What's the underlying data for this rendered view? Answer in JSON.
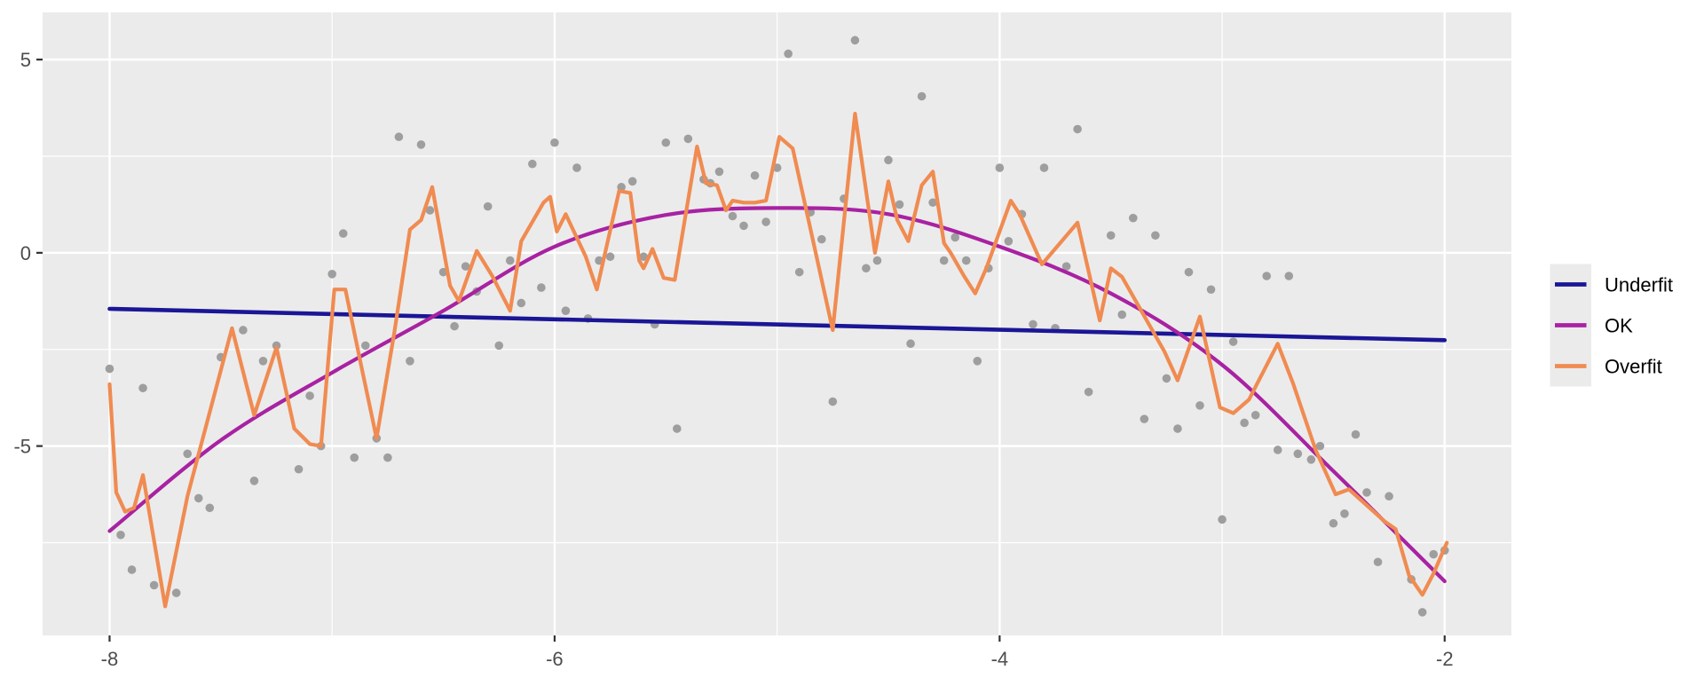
{
  "chart_data": {
    "type": "scatter",
    "title": "",
    "xlabel": "",
    "ylabel": "",
    "x_range": [
      -8.301,
      -1.7
    ],
    "y_range": [
      -9.9,
      6.22
    ],
    "x_ticks": [
      -8,
      -6,
      -4,
      -2
    ],
    "x_tick_labels": [
      "-8",
      "-6",
      "-4",
      "-2"
    ],
    "x_minor_ticks": [
      -7,
      -5,
      -3
    ],
    "y_ticks": [
      5,
      0,
      -5
    ],
    "y_tick_labels": [
      "5",
      "0",
      "-5"
    ],
    "y_minor_ticks": [
      2.5,
      -2.5,
      -7.5
    ],
    "grid": "on",
    "legend": {
      "position": "right",
      "entries": [
        {
          "label": "Underfit",
          "color": "#1A1696"
        },
        {
          "label": "OK",
          "color": "#A822A2"
        },
        {
          "label": "Overfit",
          "color": "#F08B51"
        }
      ]
    },
    "scatter": {
      "name": "data-points",
      "color": "#9E9E9E",
      "radius": 4.8,
      "points": [
        [
          -8.0,
          -3.0
        ],
        [
          -7.95,
          -7.3
        ],
        [
          -7.9,
          -8.2
        ],
        [
          -7.85,
          -3.5
        ],
        [
          -7.8,
          -8.6
        ],
        [
          -7.7,
          -8.8
        ],
        [
          -7.65,
          -5.2
        ],
        [
          -7.6,
          -6.35
        ],
        [
          -7.55,
          -6.6
        ],
        [
          -7.5,
          -2.7
        ],
        [
          -7.4,
          -2.0
        ],
        [
          -7.35,
          -5.9
        ],
        [
          -7.31,
          -2.8
        ],
        [
          -7.25,
          -2.4
        ],
        [
          -7.15,
          -5.6
        ],
        [
          -7.1,
          -3.7
        ],
        [
          -7.05,
          -5.0
        ],
        [
          -7.0,
          -0.55
        ],
        [
          -6.95,
          0.5
        ],
        [
          -6.9,
          -5.3
        ],
        [
          -6.85,
          -2.4
        ],
        [
          -6.8,
          -4.8
        ],
        [
          -6.75,
          -5.3
        ],
        [
          -6.7,
          3.0
        ],
        [
          -6.65,
          -2.8
        ],
        [
          -6.6,
          2.8
        ],
        [
          -6.56,
          1.1
        ],
        [
          -6.5,
          -0.5
        ],
        [
          -6.45,
          -1.9
        ],
        [
          -6.4,
          -0.35
        ],
        [
          -6.35,
          -1.0
        ],
        [
          -6.3,
          1.2
        ],
        [
          -6.25,
          -2.4
        ],
        [
          -6.2,
          -0.2
        ],
        [
          -6.15,
          -1.3
        ],
        [
          -6.1,
          2.3
        ],
        [
          -6.06,
          -0.9
        ],
        [
          -6.0,
          2.85
        ],
        [
          -5.95,
          -1.5
        ],
        [
          -5.9,
          2.2
        ],
        [
          -5.85,
          -1.7
        ],
        [
          -5.8,
          -0.2
        ],
        [
          -5.75,
          -0.1
        ],
        [
          -5.7,
          1.7
        ],
        [
          -5.65,
          1.85
        ],
        [
          -5.6,
          -0.1
        ],
        [
          -5.55,
          -1.85
        ],
        [
          -5.5,
          2.85
        ],
        [
          -5.45,
          -4.55
        ],
        [
          -5.4,
          2.95
        ],
        [
          -5.33,
          1.9
        ],
        [
          -5.3,
          1.8
        ],
        [
          -5.26,
          2.1
        ],
        [
          -5.2,
          0.95
        ],
        [
          -5.15,
          0.7
        ],
        [
          -5.1,
          2.0
        ],
        [
          -5.05,
          0.8
        ],
        [
          -5.0,
          2.2
        ],
        [
          -4.95,
          5.15
        ],
        [
          -4.9,
          -0.5
        ],
        [
          -4.85,
          1.05
        ],
        [
          -4.8,
          0.35
        ],
        [
          -4.75,
          -3.85
        ],
        [
          -4.7,
          1.4
        ],
        [
          -4.65,
          5.5
        ],
        [
          -4.6,
          -0.4
        ],
        [
          -4.55,
          -0.2
        ],
        [
          -4.5,
          2.4
        ],
        [
          -4.45,
          1.25
        ],
        [
          -4.4,
          -2.35
        ],
        [
          -4.35,
          4.05
        ],
        [
          -4.3,
          1.3
        ],
        [
          -4.25,
          -0.2
        ],
        [
          -4.2,
          0.4
        ],
        [
          -4.15,
          -0.2
        ],
        [
          -4.1,
          -2.8
        ],
        [
          -4.05,
          -0.4
        ],
        [
          -4.0,
          2.2
        ],
        [
          -3.96,
          0.3
        ],
        [
          -3.9,
          1.0
        ],
        [
          -3.85,
          -1.85
        ],
        [
          -3.8,
          2.2
        ],
        [
          -3.75,
          -1.95
        ],
        [
          -3.7,
          -0.35
        ],
        [
          -3.65,
          3.2
        ],
        [
          -3.6,
          -3.6
        ],
        [
          -3.5,
          0.45
        ],
        [
          -3.45,
          -1.6
        ],
        [
          -3.4,
          0.9
        ],
        [
          -3.35,
          -4.3
        ],
        [
          -3.3,
          0.45
        ],
        [
          -3.25,
          -3.25
        ],
        [
          -3.2,
          -4.55
        ],
        [
          -3.15,
          -0.5
        ],
        [
          -3.1,
          -3.95
        ],
        [
          -3.05,
          -0.95
        ],
        [
          -3.0,
          -6.9
        ],
        [
          -2.95,
          -2.3
        ],
        [
          -2.9,
          -4.4
        ],
        [
          -2.85,
          -4.2
        ],
        [
          -2.8,
          -0.6
        ],
        [
          -2.75,
          -5.1
        ],
        [
          -2.7,
          -0.6
        ],
        [
          -2.66,
          -5.2
        ],
        [
          -2.6,
          -5.35
        ],
        [
          -2.56,
          -5.0
        ],
        [
          -2.5,
          -7.0
        ],
        [
          -2.45,
          -6.75
        ],
        [
          -2.4,
          -4.7
        ],
        [
          -2.35,
          -6.2
        ],
        [
          -2.3,
          -8.0
        ],
        [
          -2.25,
          -6.3
        ],
        [
          -2.15,
          -8.45
        ],
        [
          -2.1,
          -9.3
        ],
        [
          -2.05,
          -7.8
        ],
        [
          -2.0,
          -7.7
        ]
      ]
    },
    "series": [
      {
        "name": "Underfit",
        "shape": "line",
        "color": "#1A1696",
        "width": 4.6,
        "points": [
          [
            -8.0,
            -1.45
          ],
          [
            -2.0,
            -2.26
          ]
        ]
      },
      {
        "name": "OK",
        "shape": "smooth",
        "color": "#A822A2",
        "width": 4.2,
        "points": [
          [
            -8.0,
            -7.2
          ],
          [
            -7.5,
            -4.85
          ],
          [
            -7.0,
            -3.1
          ],
          [
            -6.5,
            -1.5
          ],
          [
            -6.0,
            0.16
          ],
          [
            -5.5,
            0.98
          ],
          [
            -5.0,
            1.16
          ],
          [
            -4.5,
            1.0
          ],
          [
            -4.0,
            0.16
          ],
          [
            -3.5,
            -1.05
          ],
          [
            -3.0,
            -2.9
          ],
          [
            -2.5,
            -5.65
          ],
          [
            -2.0,
            -8.5
          ]
        ]
      },
      {
        "name": "Overfit",
        "shape": "polyline",
        "color": "#F08B51",
        "width": 4.2,
        "points": [
          [
            -8.0,
            -3.4
          ],
          [
            -7.97,
            -6.2
          ],
          [
            -7.93,
            -6.7
          ],
          [
            -7.89,
            -6.6
          ],
          [
            -7.85,
            -5.75
          ],
          [
            -7.75,
            -9.15
          ],
          [
            -7.65,
            -6.3
          ],
          [
            -7.45,
            -1.95
          ],
          [
            -7.35,
            -4.2
          ],
          [
            -7.25,
            -2.45
          ],
          [
            -7.17,
            -4.55
          ],
          [
            -7.1,
            -4.95
          ],
          [
            -7.05,
            -5.0
          ],
          [
            -6.99,
            -0.95
          ],
          [
            -6.94,
            -0.95
          ],
          [
            -6.87,
            -2.9
          ],
          [
            -6.8,
            -4.8
          ],
          [
            -6.72,
            -2.05
          ],
          [
            -6.65,
            0.6
          ],
          [
            -6.6,
            0.85
          ],
          [
            -6.55,
            1.7
          ],
          [
            -6.47,
            -0.85
          ],
          [
            -6.43,
            -1.25
          ],
          [
            -6.35,
            0.05
          ],
          [
            -6.28,
            -0.6
          ],
          [
            -6.2,
            -1.5
          ],
          [
            -6.15,
            0.3
          ],
          [
            -6.05,
            1.3
          ],
          [
            -6.02,
            1.45
          ],
          [
            -5.99,
            0.55
          ],
          [
            -5.95,
            1.0
          ],
          [
            -5.86,
            -0.1
          ],
          [
            -5.81,
            -0.95
          ],
          [
            -5.71,
            1.6
          ],
          [
            -5.66,
            1.55
          ],
          [
            -5.62,
            -0.2
          ],
          [
            -5.6,
            -0.4
          ],
          [
            -5.56,
            0.1
          ],
          [
            -5.51,
            -0.65
          ],
          [
            -5.46,
            -0.7
          ],
          [
            -5.36,
            2.75
          ],
          [
            -5.32,
            1.8
          ],
          [
            -5.27,
            1.75
          ],
          [
            -5.23,
            1.1
          ],
          [
            -5.2,
            1.35
          ],
          [
            -5.15,
            1.3
          ],
          [
            -5.1,
            1.3
          ],
          [
            -5.05,
            1.35
          ],
          [
            -4.99,
            3.0
          ],
          [
            -4.93,
            2.7
          ],
          [
            -4.75,
            -2.0
          ],
          [
            -4.65,
            3.6
          ],
          [
            -4.56,
            0.0
          ],
          [
            -4.5,
            1.85
          ],
          [
            -4.46,
            0.85
          ],
          [
            -4.41,
            0.3
          ],
          [
            -4.35,
            1.75
          ],
          [
            -4.3,
            2.1
          ],
          [
            -4.25,
            0.25
          ],
          [
            -4.22,
            0.0
          ],
          [
            -4.16,
            -0.6
          ],
          [
            -4.11,
            -1.05
          ],
          [
            -4.06,
            -0.4
          ],
          [
            -3.95,
            1.35
          ],
          [
            -3.91,
            1.0
          ],
          [
            -3.81,
            -0.3
          ],
          [
            -3.65,
            0.78
          ],
          [
            -3.55,
            -1.75
          ],
          [
            -3.5,
            -0.4
          ],
          [
            -3.45,
            -0.62
          ],
          [
            -3.26,
            -2.55
          ],
          [
            -3.2,
            -3.3
          ],
          [
            -3.1,
            -1.65
          ],
          [
            -3.01,
            -4.0
          ],
          [
            -2.95,
            -4.15
          ],
          [
            -2.88,
            -3.8
          ],
          [
            -2.75,
            -2.35
          ],
          [
            -2.68,
            -3.4
          ],
          [
            -2.58,
            -5.1
          ],
          [
            -2.49,
            -6.25
          ],
          [
            -2.43,
            -6.12
          ],
          [
            -2.27,
            -6.95
          ],
          [
            -2.22,
            -7.15
          ],
          [
            -2.16,
            -8.35
          ],
          [
            -2.1,
            -8.85
          ],
          [
            -2.05,
            -8.3
          ],
          [
            -1.99,
            -7.5
          ]
        ]
      }
    ]
  },
  "panel": {
    "background": "#EBEBEB",
    "grid_color": "#FFFFFF",
    "tick_color": "#333333",
    "axis_text_color": "#4D4D4D"
  }
}
